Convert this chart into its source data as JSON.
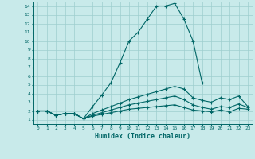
{
  "xlabel": "Humidex (Indice chaleur)",
  "bg_color": "#c8eaea",
  "grid_color": "#9ecece",
  "line_color": "#006666",
  "xlim": [
    -0.5,
    23.5
  ],
  "ylim": [
    0.5,
    14.5
  ],
  "xticks": [
    0,
    1,
    2,
    3,
    4,
    5,
    6,
    7,
    8,
    9,
    10,
    11,
    12,
    13,
    14,
    15,
    16,
    17,
    18,
    19,
    20,
    21,
    22,
    23
  ],
  "yticks": [
    1,
    2,
    3,
    4,
    5,
    6,
    7,
    8,
    9,
    10,
    11,
    12,
    13,
    14
  ],
  "lines": [
    {
      "x": [
        0,
        1,
        2,
        3,
        4,
        5,
        6,
        7,
        8,
        9,
        10,
        11,
        12,
        13,
        14,
        15,
        16,
        17,
        18
      ],
      "y": [
        2,
        2,
        1.5,
        1.7,
        1.7,
        1.1,
        2.5,
        3.8,
        5.2,
        7.5,
        10,
        11,
        12.5,
        14,
        14,
        14.3,
        12.5,
        10,
        5.2
      ]
    },
    {
      "x": [
        0,
        1,
        2,
        3,
        4,
        5,
        6,
        7,
        8,
        9,
        10,
        11,
        12,
        13,
        14,
        15,
        16,
        17,
        18,
        19,
        20,
        21,
        22,
        23
      ],
      "y": [
        2,
        2,
        1.5,
        1.7,
        1.7,
        1.1,
        1.7,
        2.1,
        2.5,
        2.9,
        3.3,
        3.6,
        3.9,
        4.2,
        4.5,
        4.8,
        4.5,
        3.5,
        3.2,
        3.0,
        3.5,
        3.3,
        3.7,
        2.5
      ]
    },
    {
      "x": [
        0,
        1,
        2,
        3,
        4,
        5,
        6,
        7,
        8,
        9,
        10,
        11,
        12,
        13,
        14,
        15,
        16,
        17,
        18,
        19,
        20,
        21,
        22,
        23
      ],
      "y": [
        2,
        2,
        1.5,
        1.7,
        1.7,
        1.1,
        1.5,
        1.8,
        2.1,
        2.4,
        2.7,
        2.9,
        3.1,
        3.3,
        3.5,
        3.7,
        3.3,
        2.7,
        2.4,
        2.2,
        2.5,
        2.4,
        2.8,
        2.4
      ]
    },
    {
      "x": [
        0,
        1,
        2,
        3,
        4,
        5,
        6,
        7,
        8,
        9,
        10,
        11,
        12,
        13,
        14,
        15,
        16,
        17,
        18,
        19,
        20,
        21,
        22,
        23
      ],
      "y": [
        2,
        2,
        1.5,
        1.7,
        1.7,
        1.1,
        1.4,
        1.6,
        1.8,
        2.0,
        2.2,
        2.3,
        2.4,
        2.5,
        2.6,
        2.7,
        2.4,
        2.1,
        2.0,
        1.9,
        2.1,
        1.9,
        2.3,
        2.2
      ]
    }
  ]
}
